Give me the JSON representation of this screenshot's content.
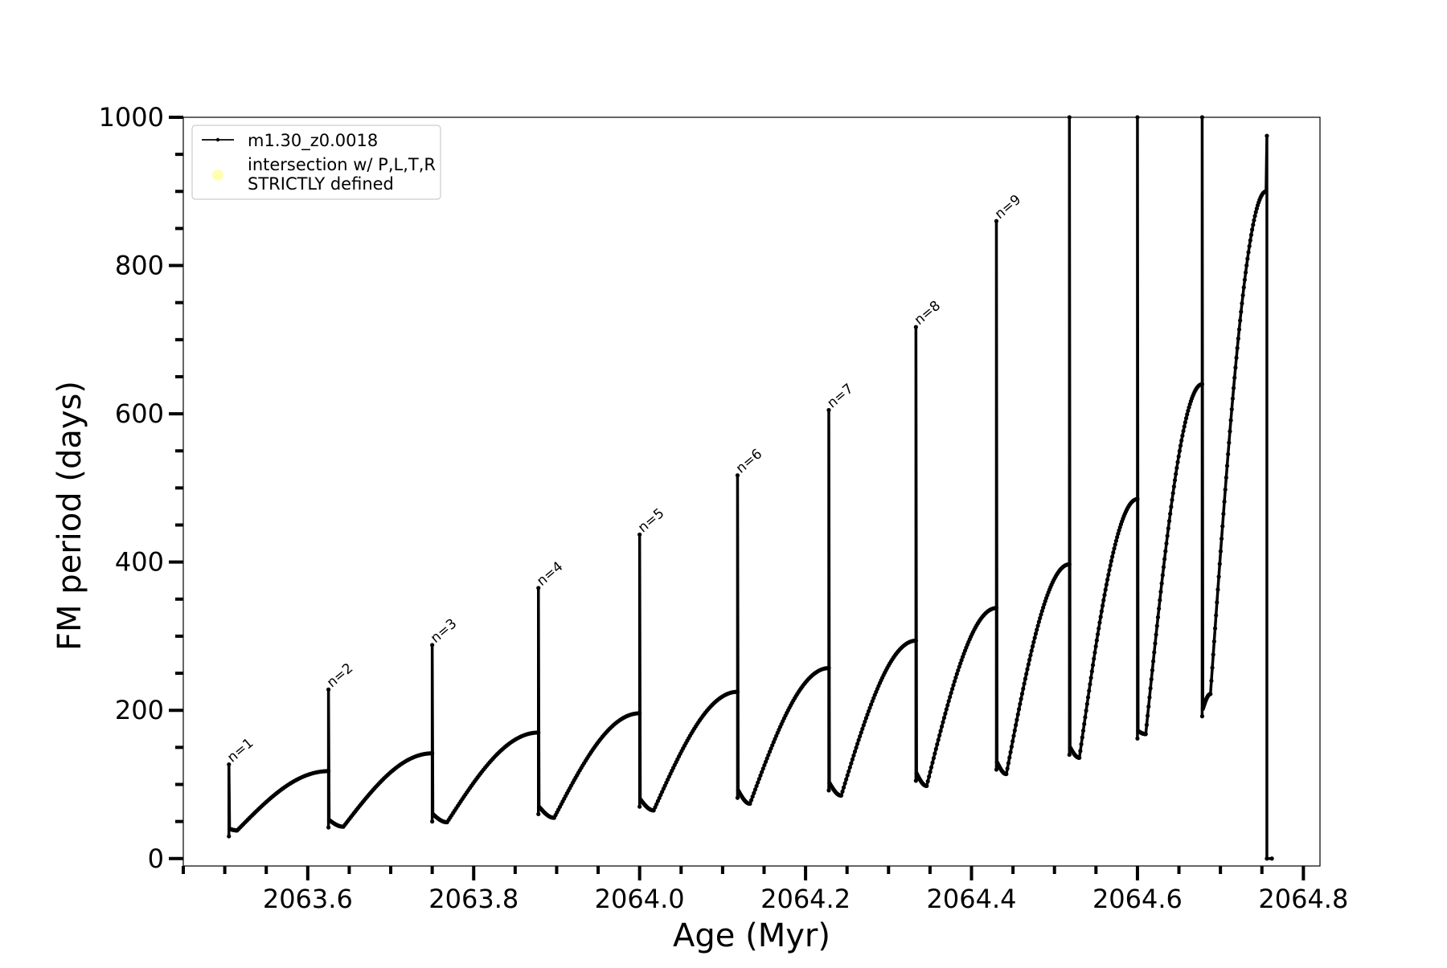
{
  "chart_data": {
    "type": "line",
    "title": "",
    "xlabel": "Age (Myr)",
    "ylabel": "FM period (days)",
    "xlim": [
      2063.45,
      2064.82
    ],
    "ylim": [
      -10,
      1000
    ],
    "x_ticks": [
      2063.6,
      2063.8,
      2064.0,
      2064.2,
      2064.4,
      2064.6,
      2064.8
    ],
    "x_tick_labels": [
      "2063.6",
      "2063.8",
      "2064.0",
      "2064.2",
      "2064.4",
      "2064.6",
      "2064.8"
    ],
    "x_minor_step": 0.05,
    "y_ticks": [
      0,
      200,
      400,
      600,
      800,
      1000
    ],
    "y_tick_labels": [
      "0",
      "200",
      "400",
      "600",
      "800",
      "1000"
    ],
    "y_minor_step": 50,
    "grid": false,
    "legend_position": "top-left",
    "legend": [
      {
        "label": "m1.30_z0.0018",
        "marker": "line-with-dots",
        "color": "#000000"
      },
      {
        "label": "intersection w/ P,L,T,R\nSTRICTLY defined",
        "marker": "circle",
        "color": "#ffffb2"
      }
    ],
    "series": [
      {
        "name": "m1.30_z0.0018",
        "color": "#000000",
        "pulses": [
          {
            "start": 2063.505,
            "peak": 127,
            "dip_low": 30,
            "min_x": 2063.515,
            "min_y": 38,
            "end_x": 2063.625,
            "end_y": 118
          },
          {
            "start": 2063.625,
            "peak": 228,
            "dip_low": 42,
            "min_x": 2063.643,
            "min_y": 43,
            "end_x": 2063.75,
            "end_y": 142
          },
          {
            "start": 2063.75,
            "peak": 288,
            "dip_low": 50,
            "min_x": 2063.768,
            "min_y": 49,
            "end_x": 2063.878,
            "end_y": 170
          },
          {
            "start": 2063.878,
            "peak": 365,
            "dip_low": 60,
            "min_x": 2063.897,
            "min_y": 55,
            "end_x": 2064.0,
            "end_y": 196
          },
          {
            "start": 2064.0,
            "peak": 437,
            "dip_low": 70,
            "min_x": 2064.017,
            "min_y": 65,
            "end_x": 2064.118,
            "end_y": 225
          },
          {
            "start": 2064.118,
            "peak": 517,
            "dip_low": 82,
            "min_x": 2064.133,
            "min_y": 74,
            "end_x": 2064.228,
            "end_y": 257
          },
          {
            "start": 2064.228,
            "peak": 605,
            "dip_low": 92,
            "min_x": 2064.243,
            "min_y": 85,
            "end_x": 2064.333,
            "end_y": 294
          },
          {
            "start": 2064.333,
            "peak": 717,
            "dip_low": 105,
            "min_x": 2064.346,
            "min_y": 98,
            "end_x": 2064.43,
            "end_y": 338
          },
          {
            "start": 2064.43,
            "peak": 860,
            "dip_low": 120,
            "min_x": 2064.442,
            "min_y": 114,
            "end_x": 2064.518,
            "end_y": 397
          },
          {
            "start": 2064.518,
            "peak": 1000,
            "dip_low": 140,
            "min_x": 2064.53,
            "min_y": 136,
            "end_x": 2064.6,
            "end_y": 485
          },
          {
            "start": 2064.6,
            "peak": 1000,
            "dip_low": 162,
            "min_x": 2064.61,
            "min_y": 168,
            "end_x": 2064.678,
            "end_y": 640
          },
          {
            "start": 2064.678,
            "peak": 1000,
            "dip_low": 192,
            "min_x": 2064.688,
            "min_y": 222,
            "end_x": 2064.755,
            "end_y": 900
          }
        ],
        "final_spike": {
          "x": 2064.756,
          "peak": 975,
          "end_x": 2064.762,
          "end_y": 0
        }
      }
    ],
    "annotations": [
      {
        "text": "n=1",
        "x": 2063.505,
        "y": 127
      },
      {
        "text": "n=2",
        "x": 2063.625,
        "y": 228
      },
      {
        "text": "n=3",
        "x": 2063.75,
        "y": 288
      },
      {
        "text": "n=4",
        "x": 2063.878,
        "y": 365
      },
      {
        "text": "n=5",
        "x": 2064.0,
        "y": 437
      },
      {
        "text": "n=6",
        "x": 2064.118,
        "y": 517
      },
      {
        "text": "n=7",
        "x": 2064.228,
        "y": 605
      },
      {
        "text": "n=8",
        "x": 2064.333,
        "y": 717
      },
      {
        "text": "n=9",
        "x": 2064.43,
        "y": 860
      }
    ]
  }
}
